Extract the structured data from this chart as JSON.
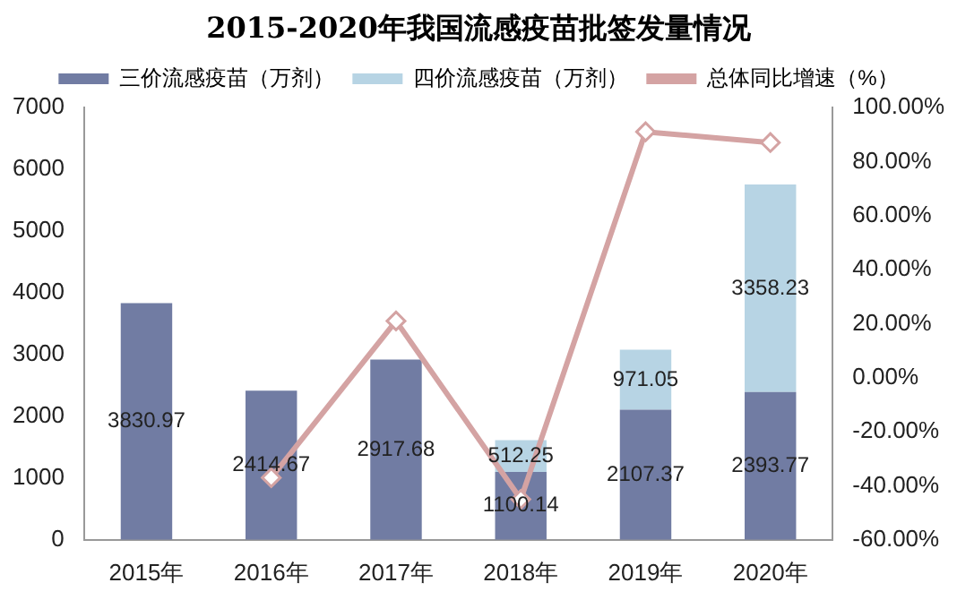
{
  "chart_data": {
    "type": "bar",
    "title": "2015-2020年我国流感疫苗批签发量情况",
    "categories": [
      "2015年",
      "2016年",
      "2017年",
      "2018年",
      "2019年",
      "2020年"
    ],
    "stacked": true,
    "legend": "top",
    "grid": false,
    "series": [
      {
        "name": "三价流感疫苗（万剂）",
        "color": "#717ca3",
        "values": [
          3830.97,
          2414.67,
          2917.68,
          1100.14,
          2107.37,
          2393.77
        ],
        "value_labels": [
          "3830.97",
          "2414.67",
          "2917.68",
          "1100.14",
          "2107.37",
          "2393.77"
        ]
      },
      {
        "name": "四价流感疫苗（万剂）",
        "color": "#b7d4e4",
        "values": [
          null,
          null,
          null,
          512.25,
          971.05,
          3358.23
        ],
        "value_labels": [
          null,
          null,
          null,
          "512.25",
          "971.05",
          "3358.23"
        ]
      },
      {
        "name": "总体同比增速（%）",
        "type": "line",
        "axis": "y2",
        "color": "#d4a3a3",
        "marker": "diamond",
        "values": [
          null,
          -37,
          21,
          -45,
          91,
          87
        ]
      }
    ],
    "ylim": [
      0,
      7000
    ],
    "yticks": [
      0,
      1000,
      2000,
      3000,
      4000,
      5000,
      6000,
      7000
    ],
    "y2lim": [
      -60,
      100
    ],
    "y2ticks": [
      {
        "value": -60,
        "label": "-60.00%"
      },
      {
        "value": -40,
        "label": "-40.00%"
      },
      {
        "value": -20,
        "label": "-20.00%"
      },
      {
        "value": 0,
        "label": "0.00%"
      },
      {
        "value": 20,
        "label": "20.00%"
      },
      {
        "value": 40,
        "label": "40.00%"
      },
      {
        "value": 60,
        "label": "60.00%"
      },
      {
        "value": 80,
        "label": "80.00%"
      },
      {
        "value": 100,
        "label": "100.00%"
      }
    ]
  }
}
